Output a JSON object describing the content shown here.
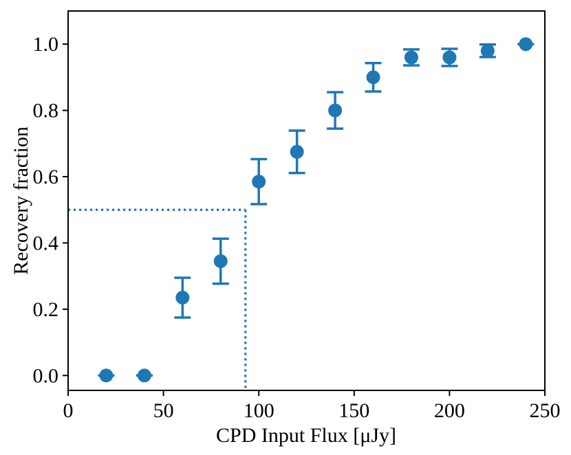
{
  "chart_data": {
    "type": "scatter",
    "title": "",
    "xlabel": "CPD Input Flux [μJy]",
    "ylabel": "Recovery fraction",
    "xlim": [
      0,
      250
    ],
    "ylim": [
      -0.045,
      1.1
    ],
    "grid": false,
    "legend": null,
    "xticks": {
      "values": [
        0,
        50,
        100,
        150,
        200,
        250
      ],
      "labels": [
        "0",
        "50",
        "100",
        "150",
        "200",
        "250"
      ]
    },
    "yticks": {
      "values": [
        0.0,
        0.2,
        0.4,
        0.6,
        0.8,
        1.0
      ],
      "labels": [
        "0.0",
        "0.2",
        "0.4",
        "0.6",
        "0.8",
        "1.0"
      ]
    },
    "series": [
      {
        "name": "recovery-fraction-vs-flux",
        "marker": "circle",
        "color": "#1f77b4",
        "x": [
          20,
          40,
          60,
          80,
          100,
          120,
          140,
          160,
          180,
          200,
          220,
          240
        ],
        "y": [
          0.0,
          0.0,
          0.235,
          0.345,
          0.585,
          0.675,
          0.8,
          0.9,
          0.96,
          0.96,
          0.98,
          1.0
        ],
        "yerr": [
          0.0,
          0.0,
          0.06,
          0.068,
          0.068,
          0.064,
          0.055,
          0.043,
          0.024,
          0.026,
          0.019,
          0.0
        ]
      }
    ],
    "annotations": {
      "threshold_fraction": 0.5,
      "threshold_flux": 93,
      "line_style": "dotted",
      "line_color": "#1f77b4"
    }
  },
  "colors": {
    "accent": "#1f77b4",
    "axis": "#000000",
    "background": "#ffffff"
  }
}
